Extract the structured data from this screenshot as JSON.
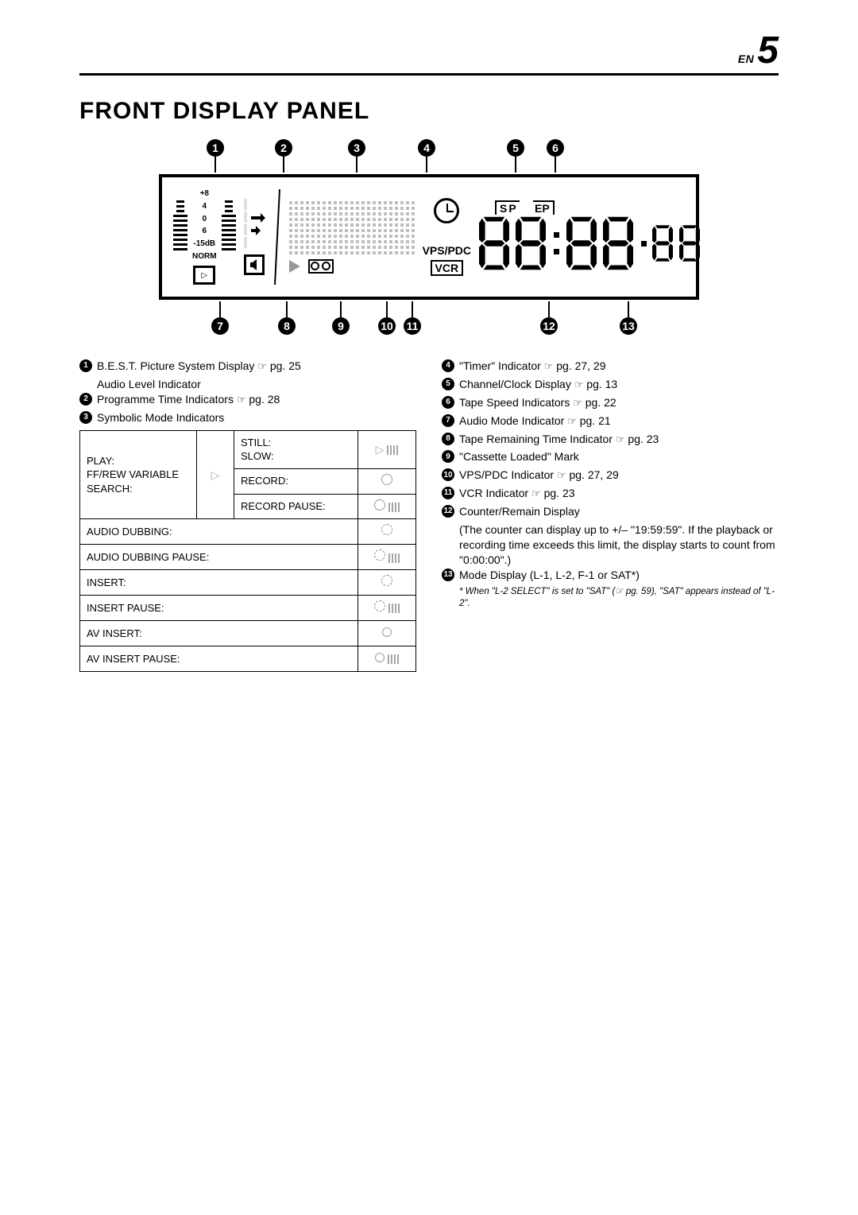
{
  "header": {
    "lang": "EN",
    "page_num": "5"
  },
  "title": "FRONT DISPLAY PANEL",
  "panel": {
    "scale": [
      "+8",
      "4",
      "0",
      "6",
      "-15dB",
      "NORM"
    ],
    "vps": "VPS/PDC",
    "vcr": "VCR",
    "sp": "SP",
    "ep": "EP"
  },
  "callouts_top": [
    "1",
    "2",
    "3",
    "4",
    "5",
    "6"
  ],
  "callouts_bottom": [
    "7",
    "8",
    "9",
    "10",
    "11",
    "12",
    "13"
  ],
  "left_list": [
    {
      "n": "1",
      "text": "B.E.S.T. Picture System Display ",
      "ref": "pg. 25",
      "sub": "Audio Level Indicator"
    },
    {
      "n": "2",
      "text": "Programme Time Indicators ",
      "ref": "pg. 28"
    },
    {
      "n": "3",
      "text": "Symbolic Mode Indicators"
    }
  ],
  "symb_table": {
    "play_block": "PLAY:\nFF/REW VARIABLE SEARCH:",
    "rows_right": [
      {
        "lbl": "STILL:\nSLOW:",
        "icon": "play-pause"
      },
      {
        "lbl": "RECORD:",
        "icon": "circle"
      },
      {
        "lbl": "RECORD PAUSE:",
        "icon": "circle-pause"
      }
    ],
    "full_rows": [
      {
        "lbl": "AUDIO DUBBING:",
        "icon": "dashed"
      },
      {
        "lbl": "AUDIO DUBBING PAUSE:",
        "icon": "dashed-pause"
      },
      {
        "lbl": "INSERT:",
        "icon": "dashed-circle"
      },
      {
        "lbl": "INSERT PAUSE:",
        "icon": "dashed-circle-pause"
      },
      {
        "lbl": "AV INSERT:",
        "icon": "sun"
      },
      {
        "lbl": "AV INSERT PAUSE:",
        "icon": "sun-pause"
      }
    ]
  },
  "right_list": [
    {
      "n": "4",
      "text": "\"Timer\" Indicator ",
      "ref": "pg. 27, 29"
    },
    {
      "n": "5",
      "text": "Channel/Clock Display ",
      "ref": "pg. 13"
    },
    {
      "n": "6",
      "text": "Tape Speed Indicators ",
      "ref": "pg. 22"
    },
    {
      "n": "7",
      "text": "Audio Mode Indicator ",
      "ref": "pg. 21"
    },
    {
      "n": "8",
      "text": "Tape Remaining Time Indicator ",
      "ref": "pg. 23"
    },
    {
      "n": "9",
      "text": "\"Cassette Loaded\" Mark"
    },
    {
      "n": "10",
      "text": "VPS/PDC Indicator ",
      "ref": "pg. 27, 29"
    },
    {
      "n": "11",
      "text": "VCR Indicator ",
      "ref": "pg. 23"
    },
    {
      "n": "12",
      "text": "Counter/Remain Display",
      "sub": "(The counter can display up to +/– \"19:59:59\". If the playback or recording time exceeds this limit, the display starts to count from \"0:00:00\".)"
    },
    {
      "n": "13",
      "text": "Mode Display (L-1, L-2, F-1 or SAT*)",
      "foot": "*  When \"L-2 SELECT\" is set to \"SAT\" (☞ pg. 59), \"SAT\" appears instead of \"L-2\"."
    }
  ],
  "ref_glyph": "☞"
}
